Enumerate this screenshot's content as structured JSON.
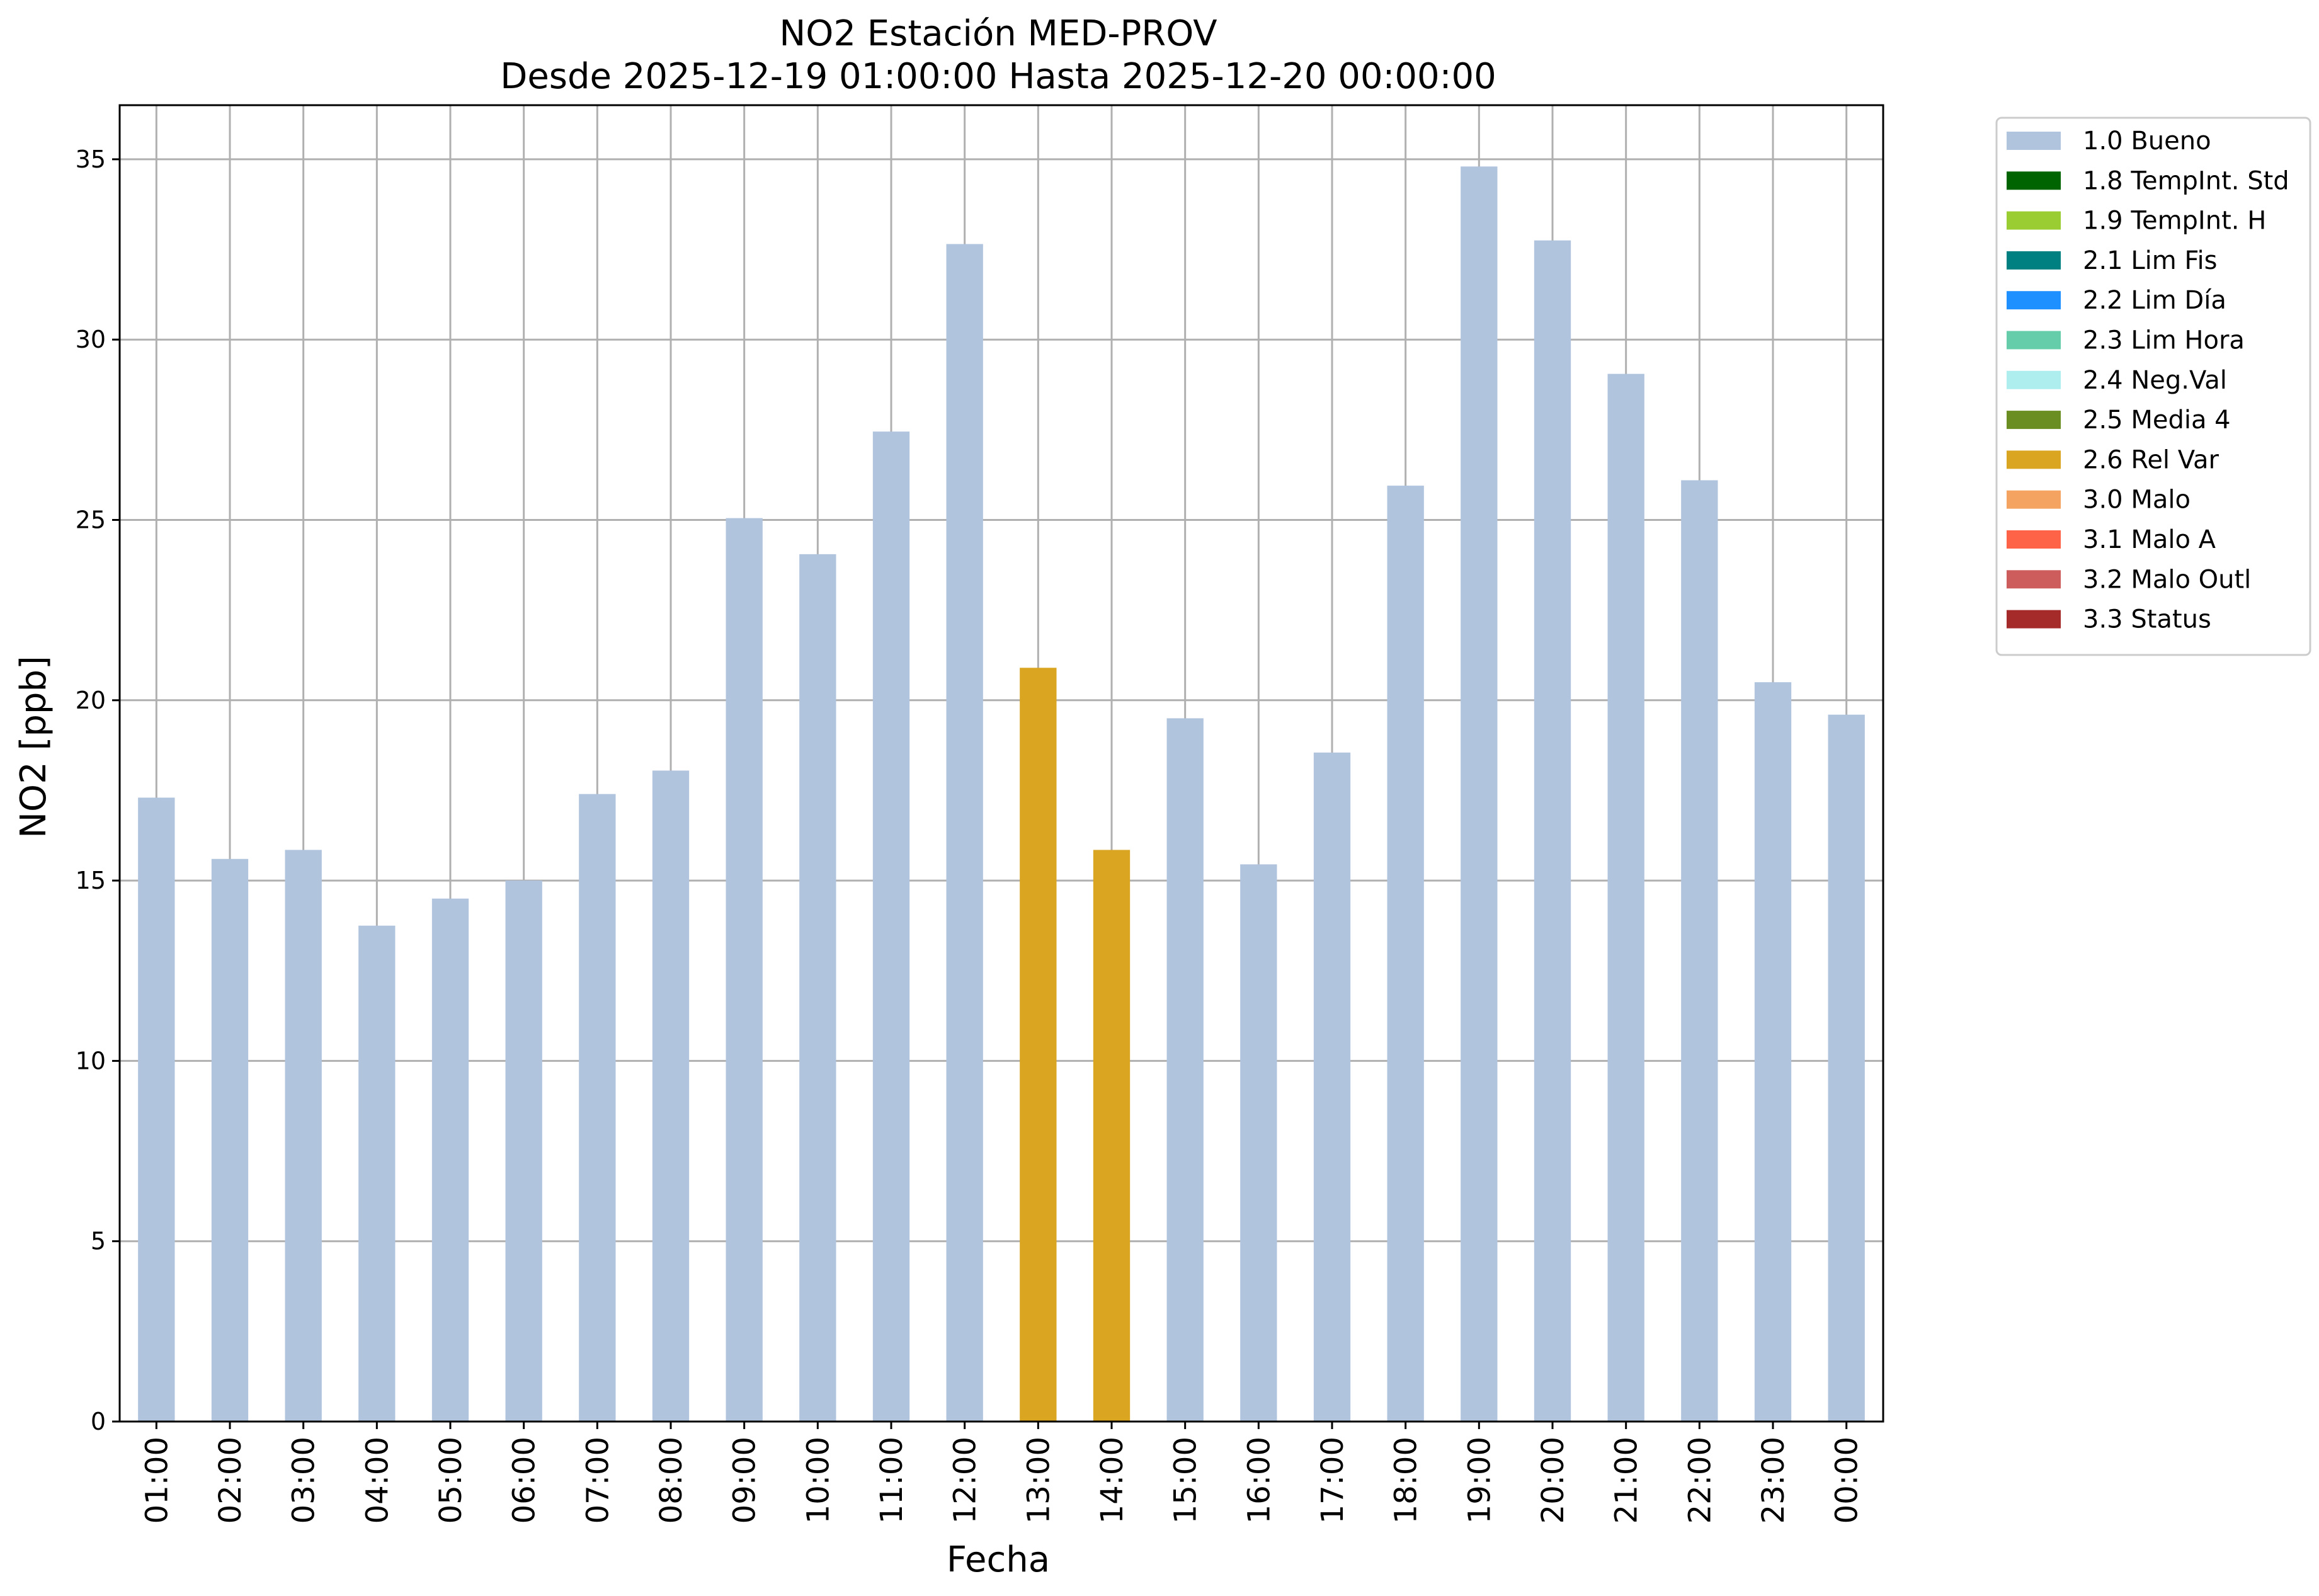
{
  "chart_data": {
    "type": "bar",
    "title": "NO2 Estación MED-PROV",
    "subtitle": "Desde 2025-12-19 01:00:00 Hasta 2025-12-20 00:00:00",
    "xlabel": "Fecha",
    "ylabel": "NO2 [ppb]",
    "ylim": [
      0,
      36.5
    ],
    "yticks": [
      0,
      5,
      10,
      15,
      20,
      25,
      30,
      35
    ],
    "grid": true,
    "legend_position": "outside-top-right",
    "categories": [
      "01:00",
      "02:00",
      "03:00",
      "04:00",
      "05:00",
      "06:00",
      "07:00",
      "08:00",
      "09:00",
      "10:00",
      "11:00",
      "12:00",
      "13:00",
      "14:00",
      "15:00",
      "16:00",
      "17:00",
      "18:00",
      "19:00",
      "20:00",
      "21:00",
      "22:00",
      "23:00",
      "00:00"
    ],
    "values": [
      17.3,
      15.6,
      15.85,
      13.75,
      14.5,
      15.0,
      17.4,
      18.05,
      25.05,
      24.05,
      27.45,
      32.65,
      20.9,
      15.85,
      19.5,
      15.45,
      18.55,
      25.95,
      34.8,
      32.75,
      29.05,
      26.1,
      20.5,
      19.6
    ],
    "flags": [
      "1.0 Bueno",
      "1.0 Bueno",
      "1.0 Bueno",
      "1.0 Bueno",
      "1.0 Bueno",
      "1.0 Bueno",
      "1.0 Bueno",
      "1.0 Bueno",
      "1.0 Bueno",
      "1.0 Bueno",
      "1.0 Bueno",
      "1.0 Bueno",
      "2.6 Rel Var",
      "2.6 Rel Var",
      "1.0 Bueno",
      "1.0 Bueno",
      "1.0 Bueno",
      "1.0 Bueno",
      "1.0 Bueno",
      "1.0 Bueno",
      "1.0 Bueno",
      "1.0 Bueno",
      "1.0 Bueno",
      "1.0 Bueno"
    ],
    "legend": [
      {
        "label": "1.0 Bueno",
        "color": "#b0c4de"
      },
      {
        "label": "1.8 TempInt. Std",
        "color": "#006400"
      },
      {
        "label": "1.9 TempInt. H",
        "color": "#9acd32"
      },
      {
        "label": "2.1 Lim Fis",
        "color": "#008080"
      },
      {
        "label": "2.2 Lim Día",
        "color": "#1e90ff"
      },
      {
        "label": "2.3 Lim Hora",
        "color": "#66cdaa"
      },
      {
        "label": "2.4 Neg.Val",
        "color": "#afeeee"
      },
      {
        "label": "2.5 Media 4",
        "color": "#6b8e23"
      },
      {
        "label": "2.6 Rel Var",
        "color": "#daa520"
      },
      {
        "label": "3.0 Malo",
        "color": "#f4a460"
      },
      {
        "label": "3.1 Malo A",
        "color": "#ff6347"
      },
      {
        "label": "3.2 Malo Outl",
        "color": "#cd5c5c"
      },
      {
        "label": "3.3 Status",
        "color": "#a52a2a"
      }
    ]
  }
}
